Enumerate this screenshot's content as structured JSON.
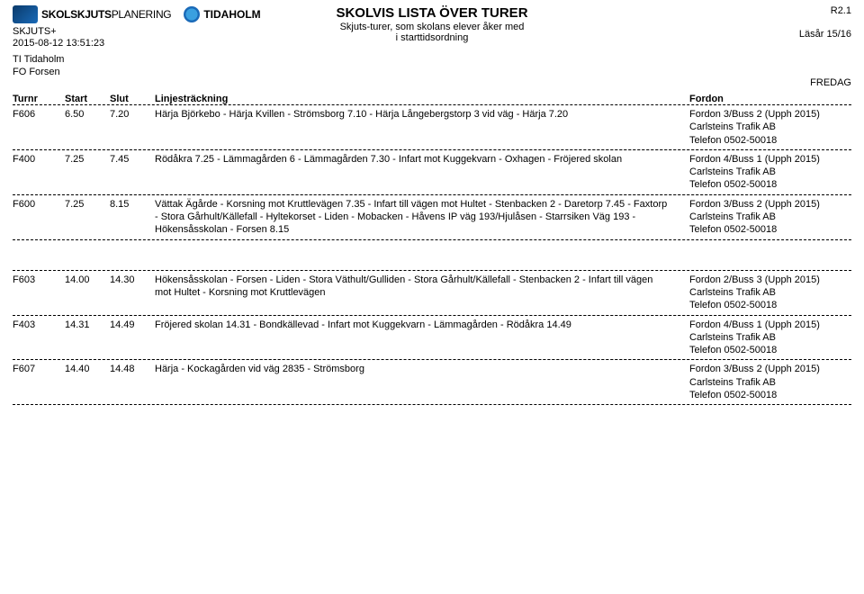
{
  "header": {
    "logo1_a": "SKOLSKJUTS",
    "logo1_b": "PLANERING",
    "logo2": "TIDAHOLM",
    "app_name": "SKJUTS+",
    "timestamp": "2015-08-12 13:51:23",
    "ti": "TI Tidaholm",
    "fo": "FO Forsen",
    "title": "SKOLVIS LISTA ÖVER TURER",
    "subtitle1": "Skjuts-turer, som skolans elever åker med",
    "subtitle2": "i starttidsordning",
    "version": "R2.1",
    "lasar": "Läsår 15/16",
    "weekday": "FREDAG"
  },
  "columns": {
    "turnr": "Turnr",
    "start": "Start",
    "slut": "Slut",
    "linje": "Linjesträckning",
    "fordon": "Fordon"
  },
  "rows": [
    {
      "turnr": "F606",
      "start": "6.50",
      "slut": "7.20",
      "linje": "Härja Björkebo - Härja Kvillen - Strömsborg 7.10 - Härja Långebergstorp 3 vid väg - Härja 7.20",
      "fordon1": "Fordon 3/Buss 2 (Upph 2015)",
      "fordon2": "Carlsteins Trafik AB",
      "fordon3": "Telefon 0502-50018"
    },
    {
      "turnr": "F400",
      "start": "7.25",
      "slut": "7.45",
      "linje": "Rödåkra 7.25 - Lämmagården 6 - Lämmagården 7.30 - Infart mot Kuggekvarn - Oxhagen - Fröjered skolan",
      "fordon1": "Fordon 4/Buss 1 (Upph 2015)",
      "fordon2": "Carlsteins Trafik AB",
      "fordon3": "Telefon 0502-50018"
    },
    {
      "turnr": "F600",
      "start": "7.25",
      "slut": "8.15",
      "linje": "Vättak Ägårde - Korsning mot Kruttlevägen 7.35 - Infart till vägen mot Hultet - Stenbacken 2 - Daretorp 7.45 - Faxtorp - Stora Gårhult/Källefall - Hyltekorset - Liden - Mobacken - Håvens IP väg 193/Hjulåsen - Starrsiken Väg 193 - Hökensåsskolan - Forsen 8.15",
      "fordon1": "Fordon 3/Buss 2 (Upph 2015)",
      "fordon2": "Carlsteins Trafik AB",
      "fordon3": "Telefon 0502-50018"
    },
    {
      "turnr": "F603",
      "start": "14.00",
      "slut": "14.30",
      "linje": "Hökensåsskolan - Forsen - Liden - Stora Väthult/Gulliden - Stora Gårhult/Källefall - Stenbacken 2 - Infart till vägen mot Hultet - Korsning mot Kruttlevägen",
      "fordon1": "Fordon 2/Buss 3 (Upph 2015)",
      "fordon2": "Carlsteins Trafik AB",
      "fordon3": "Telefon 0502-50018"
    },
    {
      "turnr": "F403",
      "start": "14.31",
      "slut": "14.49",
      "linje": "Fröjered skolan 14.31 - Bondkällevad - Infart mot Kuggekvarn - Lämmagården - Rödåkra 14.49",
      "fordon1": "Fordon 4/Buss 1 (Upph 2015)",
      "fordon2": "Carlsteins Trafik AB",
      "fordon3": "Telefon 0502-50018"
    },
    {
      "turnr": "F607",
      "start": "14.40",
      "slut": "14.48",
      "linje": "Härja - Kockagården vid väg 2835 - Strömsborg",
      "fordon1": "Fordon 3/Buss 2 (Upph 2015)",
      "fordon2": "Carlsteins Trafik AB",
      "fordon3": "Telefon 0502-50018"
    }
  ],
  "gap_after_index": 2
}
